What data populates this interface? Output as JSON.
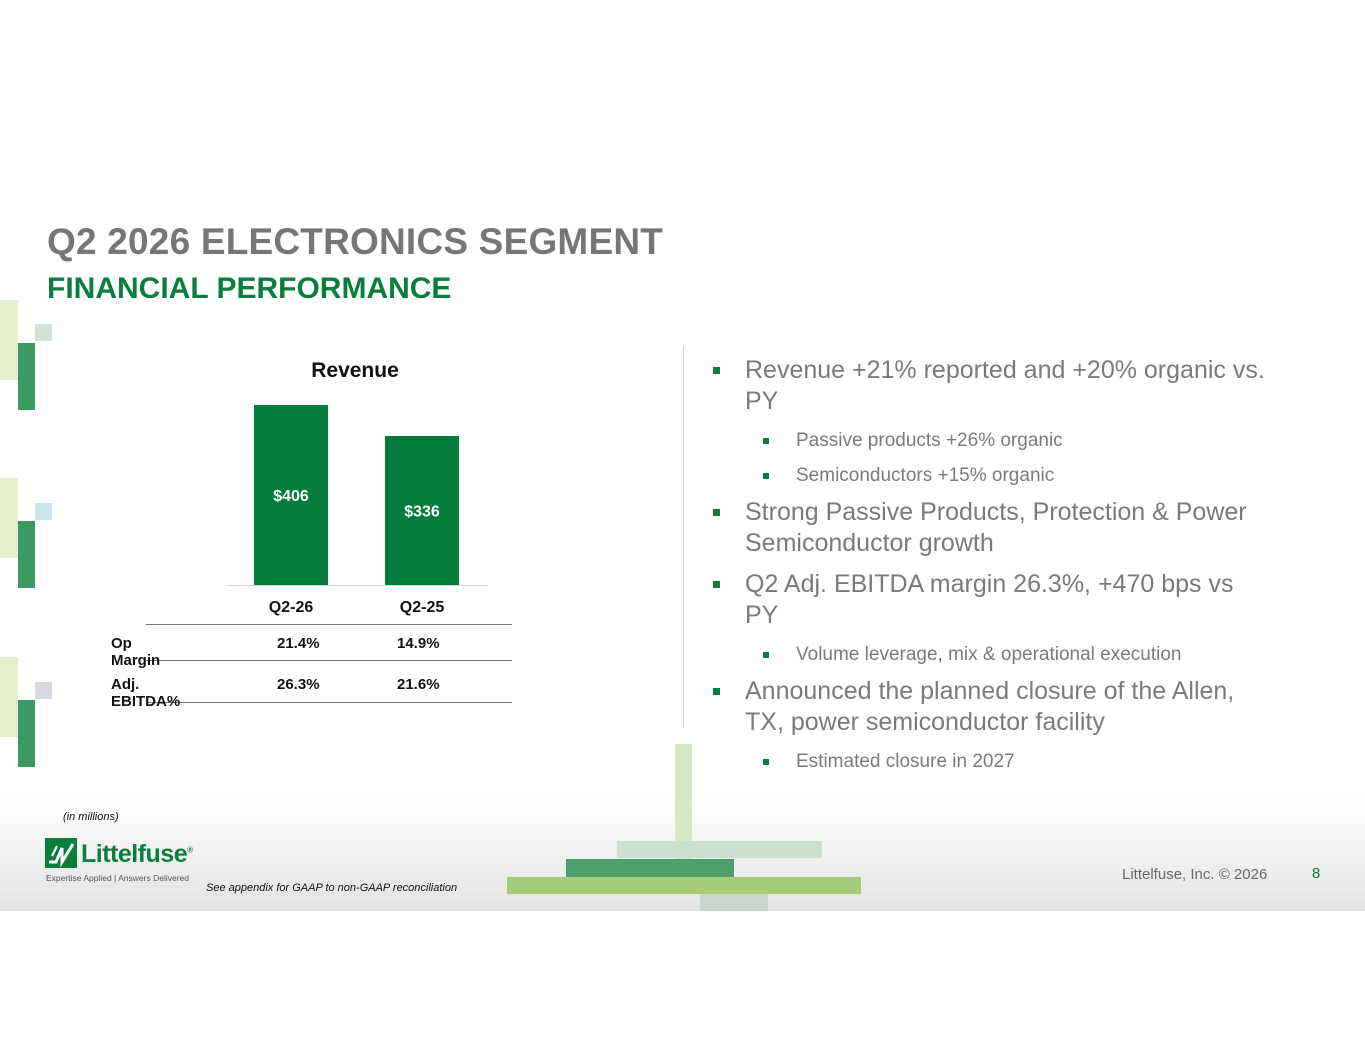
{
  "title": "Q2 2026 ELECTRONICS SEGMENT",
  "subtitle": "FINANCIAL PERFORMANCE",
  "chart_data": {
    "type": "bar",
    "title": "Revenue",
    "categories": [
      "Q2-26",
      "Q2-25"
    ],
    "values": [
      406,
      336
    ],
    "value_labels": [
      "$406",
      "$336"
    ],
    "ylim": [
      0,
      406
    ],
    "color": "#037c3b"
  },
  "metrics": {
    "rows": [
      {
        "label": "Op Margin",
        "values": [
          "21.4%",
          "14.9%"
        ]
      },
      {
        "label": "Adj. EBITDA%",
        "values": [
          "26.3%",
          "21.6%"
        ]
      }
    ]
  },
  "bullets": [
    {
      "text": "Revenue +21% reported and +20% organic vs. PY",
      "sub": [
        "Passive products +26% organic",
        "Semiconductors +15% organic"
      ]
    },
    {
      "text": "Strong Passive Products, Protection & Power Semiconductor growth",
      "sub": []
    },
    {
      "text": "Q2 Adj. EBITDA margin 26.3%, +470 bps vs PY",
      "sub": [
        "Volume leverage, mix & operational execution"
      ]
    },
    {
      "text": "Announced the planned closure of the Allen, TX, power semiconductor facility",
      "sub": [
        "Estimated closure in 2027"
      ]
    }
  ],
  "units_note": "(in millions)",
  "footnote": "See appendix for GAAP to non-GAAP reconciliation",
  "logo": {
    "name": "Littelfuse",
    "tagline": "Expertise Applied | Answers Delivered",
    "registered": "®"
  },
  "copyright": "Littelfuse, Inc. © 2026",
  "page_number": "8",
  "colors": {
    "brand_green": "#0a7e3d",
    "title_gray": "#767676",
    "light_green": "#a6cc7a"
  }
}
